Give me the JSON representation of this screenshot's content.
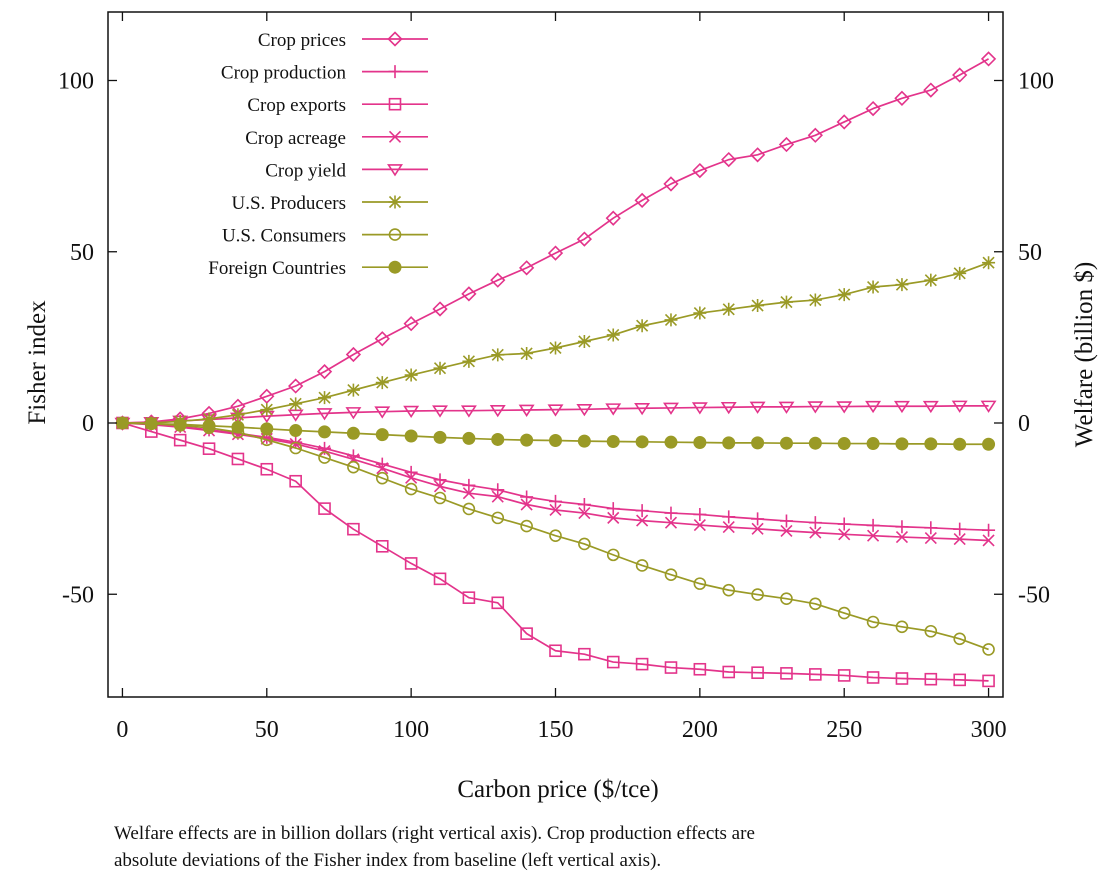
{
  "chart_data": {
    "type": "line",
    "xlabel": "Carbon price ($/tce)",
    "ylabel_left": "Fisher index",
    "ylabel_right": "Welfare (billion $)",
    "xlim": [
      -5,
      305
    ],
    "ylim": [
      -80,
      120
    ],
    "xticks": [
      0,
      50,
      100,
      150,
      200,
      250,
      300
    ],
    "xtick_labels": [
      "0",
      "50",
      "100",
      "150",
      "200",
      "250",
      "300"
    ],
    "yticks_left": [
      -50,
      0,
      50,
      100
    ],
    "yticks_left_labels": [
      "-50",
      "0",
      "50",
      "100"
    ],
    "yticks_right": [
      -50,
      0,
      50,
      100
    ],
    "yticks_right_labels": [
      "-50",
      "0",
      "50",
      "100"
    ],
    "grid": false,
    "legend_position": "top-left",
    "x": [
      0,
      10,
      20,
      30,
      40,
      50,
      60,
      70,
      80,
      90,
      100,
      110,
      120,
      130,
      140,
      150,
      160,
      170,
      180,
      190,
      200,
      210,
      220,
      230,
      240,
      250,
      260,
      270,
      280,
      290,
      300
    ],
    "series": [
      {
        "name": "Crop prices",
        "axis": "left",
        "color": "#e3348b",
        "marker": "diamond",
        "values": [
          0,
          0.3,
          1.2,
          2.8,
          4.9,
          7.8,
          10.8,
          15,
          20,
          24.6,
          29,
          33.3,
          37.7,
          41.7,
          45.3,
          49.6,
          53.7,
          59.8,
          65,
          69.8,
          73.7,
          76.9,
          78.3,
          81.3,
          84,
          87.9,
          91.8,
          94.8,
          97.2,
          101.6,
          106.3
        ]
      },
      {
        "name": "Crop production",
        "axis": "left",
        "color": "#e3348b",
        "marker": "plus",
        "values": [
          0,
          -0.3,
          -1,
          -2,
          -3,
          -4.2,
          -5.6,
          -7.4,
          -9.6,
          -12,
          -14.4,
          -16.6,
          -18.2,
          -19.5,
          -21.6,
          -22.9,
          -23.8,
          -25,
          -25.6,
          -26.3,
          -26.7,
          -27.4,
          -28,
          -28.6,
          -29.1,
          -29.5,
          -29.9,
          -30.3,
          -30.6,
          -31,
          -31.3
        ]
      },
      {
        "name": "Crop exports",
        "axis": "left",
        "color": "#e3348b",
        "marker": "square",
        "values": [
          0,
          -2.5,
          -5,
          -7.5,
          -10.5,
          -13.5,
          -17,
          -25,
          -31,
          -36,
          -41,
          -45.5,
          -51,
          -52.5,
          -61.5,
          -66.5,
          -67.5,
          -69.8,
          -70.4,
          -71.4,
          -71.9,
          -72.7,
          -72.9,
          -73.1,
          -73.4,
          -73.7,
          -74.3,
          -74.6,
          -74.8,
          -75,
          -75.3
        ]
      },
      {
        "name": "Crop acreage",
        "axis": "left",
        "color": "#e3348b",
        "marker": "x",
        "values": [
          0,
          -0.5,
          -1.2,
          -2.2,
          -3.3,
          -4.6,
          -6.1,
          -8.2,
          -10.6,
          -13.2,
          -16,
          -18.5,
          -20.5,
          -21.5,
          -23.8,
          -25.4,
          -26.3,
          -27.7,
          -28.5,
          -29.1,
          -29.8,
          -30.4,
          -30.9,
          -31.5,
          -32,
          -32.5,
          -32.9,
          -33.3,
          -33.6,
          -33.9,
          -34.3
        ]
      },
      {
        "name": "Crop yield",
        "axis": "left",
        "color": "#e3348b",
        "marker": "triangle-down",
        "values": [
          0,
          0.2,
          0.6,
          1,
          1.5,
          2,
          2.4,
          2.8,
          3.1,
          3.3,
          3.5,
          3.6,
          3.6,
          3.7,
          3.8,
          3.9,
          4,
          4.2,
          4.3,
          4.4,
          4.5,
          4.6,
          4.7,
          4.7,
          4.8,
          4.8,
          4.9,
          4.9,
          4.9,
          5,
          5
        ]
      },
      {
        "name": "U.S. Producers",
        "axis": "right",
        "color": "#9a9a26",
        "marker": "star",
        "values": [
          0,
          0,
          0.5,
          1.2,
          2.4,
          3.9,
          5.6,
          7.4,
          9.6,
          11.8,
          14,
          16,
          18,
          19.9,
          20.3,
          21.9,
          23.8,
          25.7,
          28.4,
          30.1,
          32.1,
          33.2,
          34.3,
          35.3,
          35.9,
          37.5,
          39.7,
          40.4,
          41.7,
          43.7,
          46.8
        ]
      },
      {
        "name": "U.S. Consumers",
        "axis": "right",
        "color": "#9a9a26",
        "marker": "circle-open",
        "values": [
          0,
          -0.2,
          -0.7,
          -1.4,
          -2.7,
          -4.9,
          -7.3,
          -10.1,
          -12.9,
          -16.1,
          -19.3,
          -21.9,
          -25.1,
          -27.7,
          -30.1,
          -32.9,
          -35.3,
          -38.5,
          -41.6,
          -44.3,
          -46.9,
          -48.8,
          -50.1,
          -51.3,
          -52.8,
          -55.5,
          -58.1,
          -59.5,
          -60.8,
          -63,
          -66.1
        ]
      },
      {
        "name": "Foreign Countries",
        "axis": "right",
        "color": "#9a9a26",
        "marker": "circle-filled",
        "values": [
          0,
          -0.2,
          -0.4,
          -0.8,
          -1.2,
          -1.7,
          -2.2,
          -2.6,
          -3,
          -3.4,
          -3.8,
          -4.2,
          -4.5,
          -4.8,
          -5,
          -5.1,
          -5.3,
          -5.4,
          -5.5,
          -5.6,
          -5.7,
          -5.8,
          -5.8,
          -5.9,
          -5.9,
          -6,
          -6,
          -6.1,
          -6.1,
          -6.2,
          -6.2
        ]
      }
    ]
  },
  "caption": {
    "line1": "Welfare effects are in billion dollars (right vertical axis). Crop production effects are",
    "line2": "absolute deviations of the Fisher index from baseline (left vertical axis)."
  }
}
